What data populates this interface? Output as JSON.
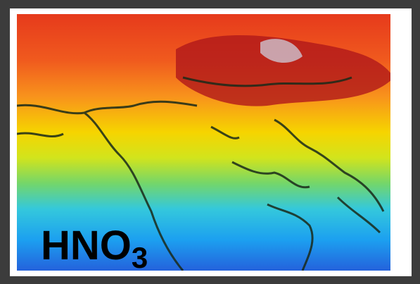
{
  "label": {
    "text": "HNO",
    "subscript": "3"
  }
}
